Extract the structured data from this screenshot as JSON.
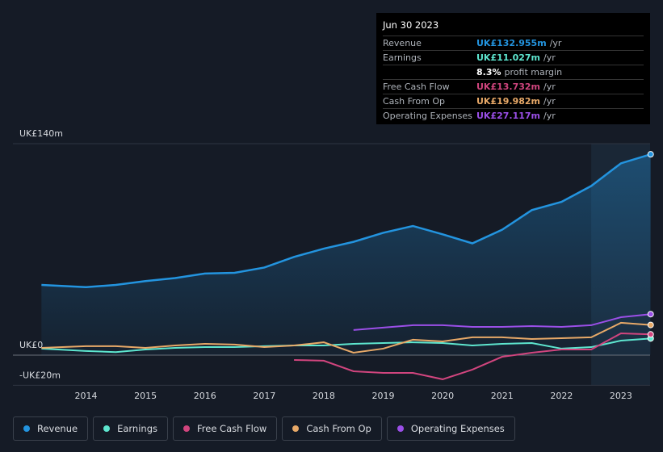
{
  "chart_data": {
    "type": "line",
    "x": [
      2013.25,
      2014,
      2014.5,
      2015,
      2015.5,
      2016,
      2016.5,
      2017,
      2017.5,
      2018,
      2018.5,
      2019,
      2019.5,
      2020,
      2020.5,
      2021,
      2021.5,
      2022,
      2022.5,
      2023,
      2023.5
    ],
    "xlim": [
      2012.77,
      2023.49
    ],
    "xticks": [
      2014,
      2015,
      2016,
      2017,
      2018,
      2019,
      2020,
      2021,
      2022,
      2023
    ],
    "ylim": [
      -20,
      140
    ],
    "yticks": [
      {
        "value": 140,
        "label": "UK£140m"
      },
      {
        "value": 0,
        "label": "UK£0"
      },
      {
        "value": -20,
        "label": "-UK£20m"
      }
    ],
    "series": [
      {
        "name": "Revenue",
        "color": "#2394df",
        "values": [
          46.5,
          45,
          46.5,
          49,
          51,
          54,
          54.5,
          58,
          65,
          70.5,
          75,
          81,
          85.5,
          80,
          74,
          83,
          96,
          101.5,
          112,
          127,
          132.955
        ]
      },
      {
        "name": "Earnings",
        "color": "#5ee6cf",
        "values": [
          4.3,
          2.7,
          2,
          3.7,
          4.8,
          5.3,
          5.3,
          5.9,
          6.4,
          6.4,
          7.5,
          8,
          8.5,
          8,
          6.4,
          7.5,
          8,
          4.3,
          5.3,
          9.6,
          11.027
        ]
      },
      {
        "name": "Free Cash Flow",
        "color": "#d1457e",
        "values": [
          null,
          null,
          null,
          null,
          null,
          null,
          null,
          null,
          -3.2,
          -3.7,
          -10.7,
          -11.8,
          -11.8,
          -16,
          -9.6,
          -1.1,
          1.6,
          3.7,
          3.7,
          14.4,
          13.732
        ]
      },
      {
        "name": "Cash From Op",
        "color": "#e8a968",
        "values": [
          4.8,
          5.9,
          5.9,
          4.8,
          6.4,
          7.5,
          7,
          5.3,
          6.4,
          8.5,
          1.6,
          4.3,
          10.2,
          9.1,
          11.8,
          11.8,
          10.7,
          11.2,
          11.8,
          21.4,
          19.982
        ]
      },
      {
        "name": "Operating Expenses",
        "color": "#9b4fe8",
        "values": [
          null,
          null,
          null,
          null,
          null,
          null,
          null,
          null,
          null,
          null,
          16.6,
          18.2,
          19.8,
          19.8,
          18.7,
          18.7,
          19.2,
          18.7,
          19.8,
          25.1,
          27.117
        ]
      }
    ],
    "tooltip": {
      "date": "Jun 30 2023",
      "rows": [
        {
          "label": "Revenue",
          "value": "UK£132.955m",
          "unit": "/yr"
        },
        {
          "label": "Earnings",
          "value": "UK£11.027m",
          "unit": "/yr"
        },
        {
          "label": null,
          "value": "8.3%",
          "unit": "profit margin"
        },
        {
          "label": "Free Cash Flow",
          "value": "UK£13.732m",
          "unit": "/yr"
        },
        {
          "label": "Cash From Op",
          "value": "UK£19.982m",
          "unit": "/yr"
        },
        {
          "label": "Operating Expenses",
          "value": "UK£27.117m",
          "unit": "/yr"
        }
      ]
    }
  }
}
